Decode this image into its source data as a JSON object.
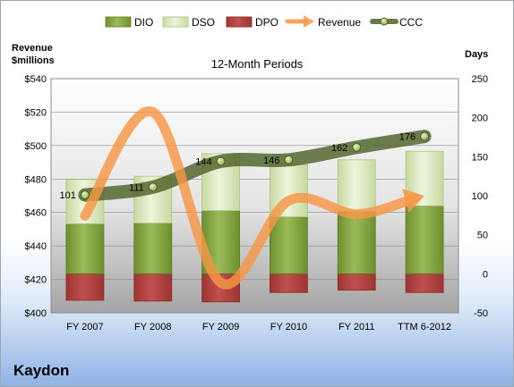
{
  "company": "Kaydon",
  "chart_data": {
    "type": "bar",
    "title": "12-Month Periods",
    "ylabel_left": [
      "Revenue",
      "$millions"
    ],
    "ylabel_right": "Days",
    "categories": [
      "FY 2007",
      "FY 2008",
      "FY 2009",
      "FY 2010",
      "FY 2011",
      "TTM 6-2012"
    ],
    "ylim_left": [
      400,
      540
    ],
    "ylim_right": [
      -50,
      250
    ],
    "left_ticks": [
      "$400",
      "$420",
      "$440",
      "$460",
      "$480",
      "$500",
      "$520",
      "$540"
    ],
    "right_ticks": [
      "-50",
      "0",
      "50",
      "100",
      "150",
      "200",
      "250"
    ],
    "legend_position": "top",
    "series": [
      {
        "name": "DIO",
        "axis": "right",
        "kind": "stacked-bar",
        "values": [
          64,
          65,
          81,
          73,
          80,
          87
        ],
        "color": "#8fb14a"
      },
      {
        "name": "DSO",
        "axis": "right",
        "kind": "stacked-bar",
        "values": [
          57,
          60,
          73,
          67,
          66,
          70
        ],
        "color": "#d7e6b3"
      },
      {
        "name": "DPO",
        "axis": "right",
        "kind": "stacked-bar",
        "values": [
          -34,
          -35,
          -36,
          -24,
          -21,
          -24
        ],
        "color": "#c0504d"
      },
      {
        "name": "Revenue",
        "axis": "left",
        "kind": "line",
        "values": [
          458,
          520,
          418,
          467,
          459,
          470
        ],
        "color": "#f79646"
      },
      {
        "name": "CCC",
        "axis": "right",
        "kind": "line",
        "values": [
          101,
          111,
          144,
          146,
          162,
          176
        ],
        "color": "#4f6228"
      }
    ],
    "data_labels": [
      "101",
      "111",
      "144",
      "146",
      "162",
      "176"
    ]
  }
}
